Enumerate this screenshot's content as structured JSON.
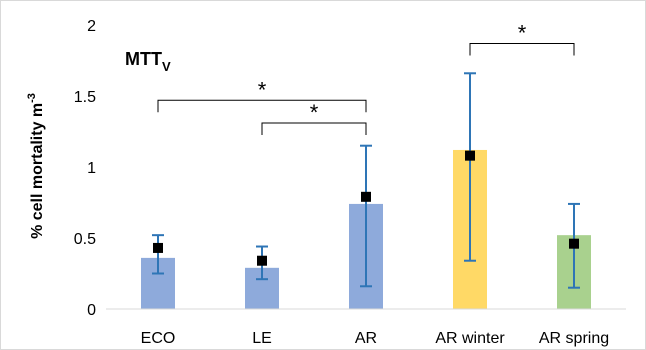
{
  "chart_data": {
    "type": "bar",
    "panel_label": {
      "main": "MTT",
      "subscript": "V"
    },
    "ylabel": {
      "main": "% cell mortality  m",
      "superscript": "-3"
    },
    "xlabel": "",
    "ylim": [
      0,
      2
    ],
    "yticks": [
      0,
      0.5,
      1,
      1.5,
      2
    ],
    "ytick_labels": [
      "0",
      "0.5",
      "1",
      "1.5",
      "2"
    ],
    "grid": false,
    "categories": [
      "ECO",
      "LE",
      "AR",
      "AR winter",
      "AR spring"
    ],
    "values": [
      0.36,
      0.29,
      0.74,
      1.12,
      0.52
    ],
    "bar_colors": [
      "#8eaadb",
      "#8eaadb",
      "#8eaadb",
      "#ffd966",
      "#a9d18e"
    ],
    "markers": [
      0.43,
      0.34,
      0.79,
      1.08,
      0.46
    ],
    "marker_color": "#000000",
    "error_bars": [
      {
        "low": 0.25,
        "high": 0.52
      },
      {
        "low": 0.21,
        "high": 0.44
      },
      {
        "low": 0.16,
        "high": 1.15
      },
      {
        "low": 0.34,
        "high": 1.66
      },
      {
        "low": 0.15,
        "high": 0.74
      }
    ],
    "error_color": "#2e75b6",
    "significance": [
      {
        "from": "ECO",
        "to": "AR",
        "y": 1.47,
        "label": "*"
      },
      {
        "from": "LE",
        "to": "AR",
        "y": 1.31,
        "label": "*"
      },
      {
        "from": "AR winter",
        "to": "AR spring",
        "y": 1.87,
        "label": "*"
      }
    ]
  }
}
